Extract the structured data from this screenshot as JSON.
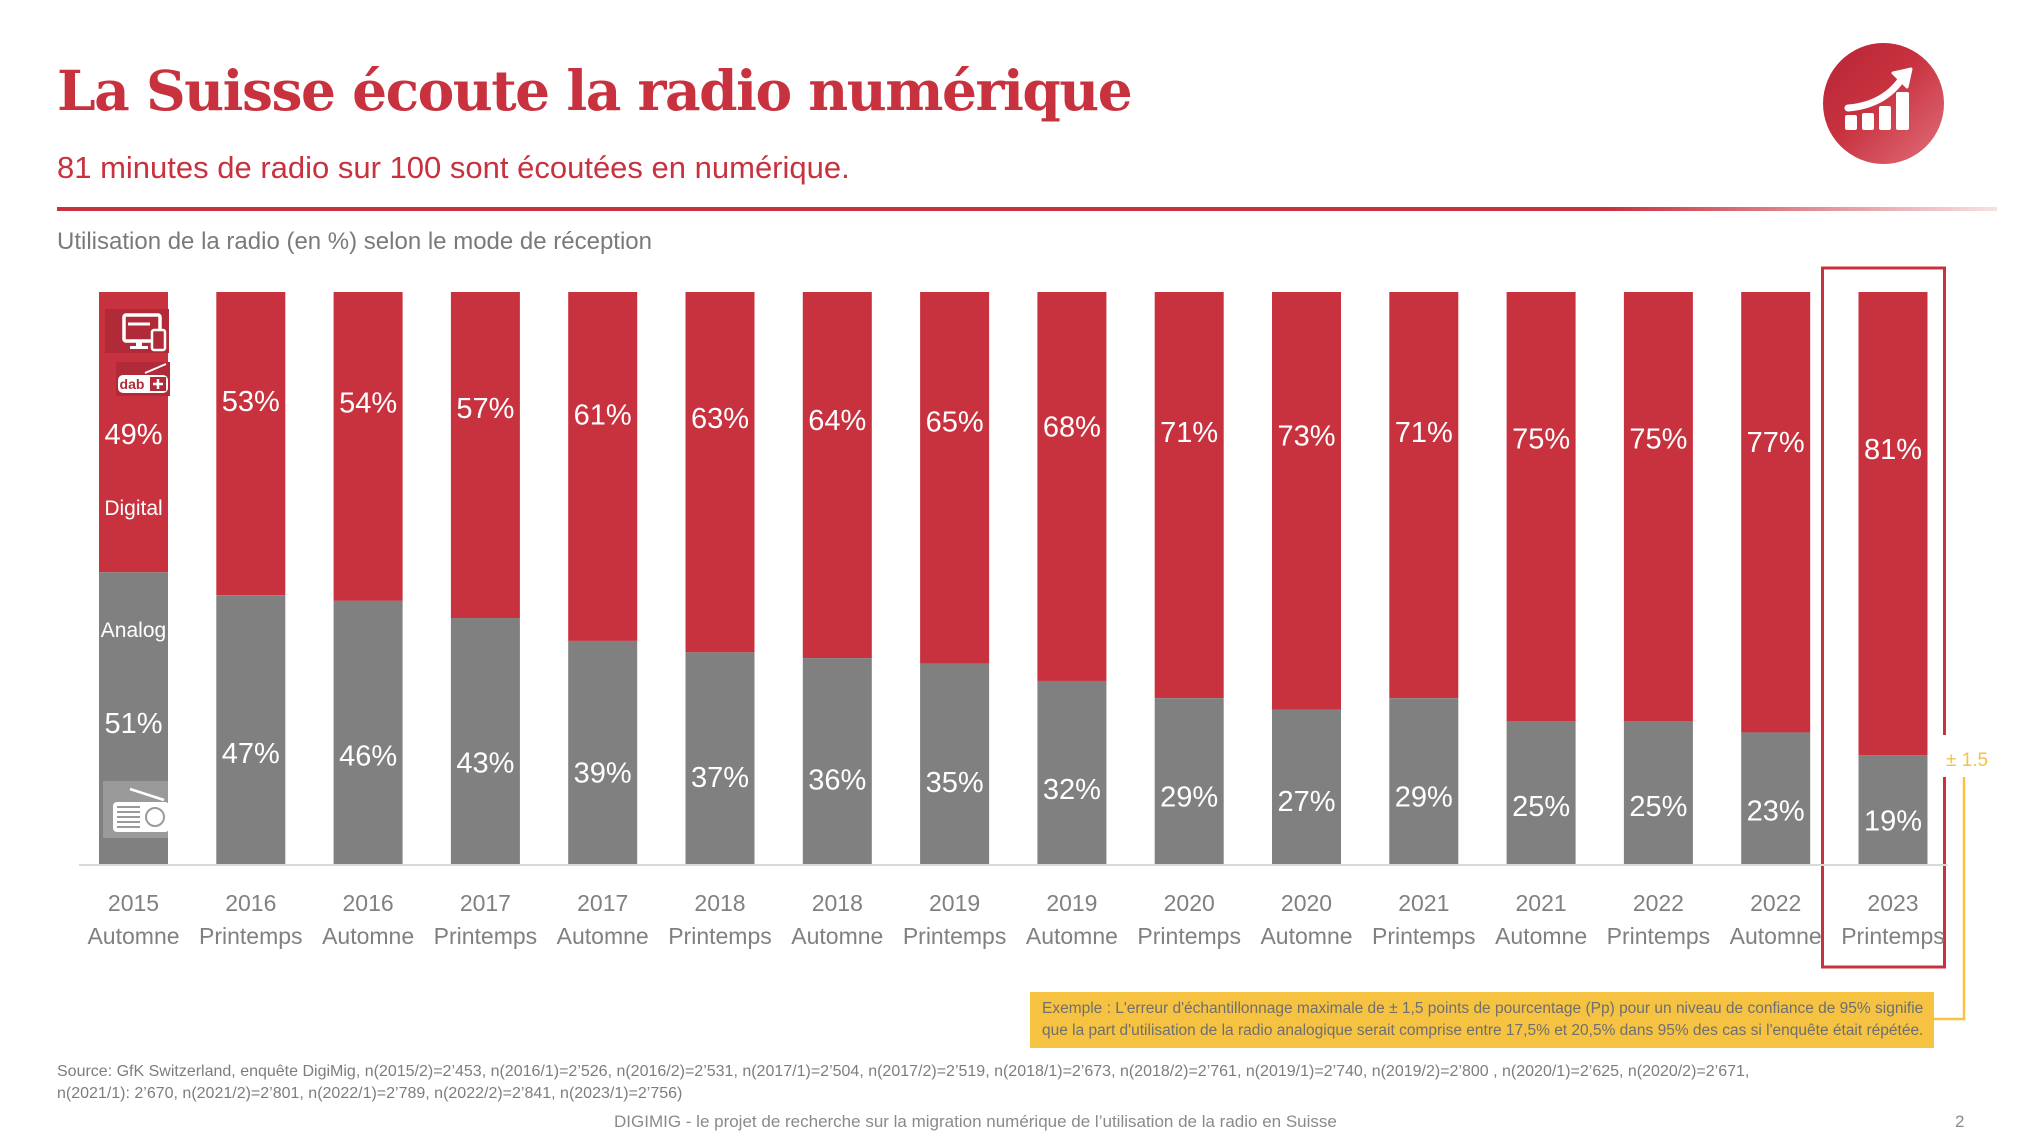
{
  "header": {
    "title": "La Suisse écoute la radio numérique",
    "subtitle": "81 minutes de radio sur 100 sont écoutées en numérique.",
    "logo_icon": "growth-chart-icon"
  },
  "colors": {
    "digital": "#c8323f",
    "analog": "#808080",
    "highlight": "#c8323f",
    "annotation": "#f5c242",
    "axis_text": "#7a7a7a"
  },
  "chart_data": {
    "type": "bar",
    "stacked": true,
    "title": "Utilisation de la radio (en %) selon le mode de réception",
    "xlabel": "",
    "ylabel": "",
    "ylim": [
      0,
      100
    ],
    "grid": false,
    "categories": [
      [
        "2015",
        "Automne"
      ],
      [
        "2016",
        "Printemps"
      ],
      [
        "2016",
        "Automne"
      ],
      [
        "2017",
        "Printemps"
      ],
      [
        "2017",
        "Automne"
      ],
      [
        "2018",
        "Printemps"
      ],
      [
        "2018",
        "Automne"
      ],
      [
        "2019",
        "Printemps"
      ],
      [
        "2019",
        "Automne"
      ],
      [
        "2020",
        "Printemps"
      ],
      [
        "2020",
        "Automne"
      ],
      [
        "2021",
        "Printemps"
      ],
      [
        "2021",
        "Automne"
      ],
      [
        "2022",
        "Printemps"
      ],
      [
        "2022",
        "Automne"
      ],
      [
        "2023",
        "Printemps"
      ]
    ],
    "series": [
      {
        "name": "Analog",
        "color": "#808080",
        "values": [
          51,
          47,
          46,
          43,
          39,
          37,
          36,
          35,
          32,
          29,
          27,
          29,
          25,
          25,
          23,
          19
        ]
      },
      {
        "name": "Digital",
        "color": "#c8323f",
        "values": [
          49,
          53,
          54,
          57,
          61,
          63,
          64,
          65,
          68,
          71,
          73,
          71,
          75,
          75,
          77,
          81
        ]
      }
    ],
    "value_suffix": "%",
    "legend": {
      "placement": "inside-first-bar",
      "digital_label": "Digital",
      "analog_label": "Analog",
      "digital_icons": [
        "computer-mobile-icon",
        "dab-plus-radio-icon"
      ],
      "analog_icon": "analog-radio-icon"
    },
    "highlight": {
      "category_index": 15,
      "error_margin_label": "± 1.5"
    }
  },
  "annotation": {
    "line1": "Exemple : L'erreur d'échantillonnage maximale de ± 1,5 points de pourcentage (Pp) pour un niveau de confiance de 95% signifie",
    "line2": "que la part d'utilisation de la radio analogique serait comprise entre 17,5% et 20,5% dans 95% des cas si l'enquête était répétée."
  },
  "source": {
    "line1": "Source: GfK Switzerland, enquête DigiMig, n(2015/2)=2’453, n(2016/1)=2’526, n(2016/2)=2’531, n(2017/1)=2’504, n(2017/2)=2’519, n(2018/1)=2’673, n(2018/2)=2’761, n(2019/1)=2’740, n(2019/2)=2’800 , n(2020/1)=2’625, n(2020/2)=2’671,",
    "line2": "n(2021/1): 2’670, n(2021/2)=2’801, n(2022/1)=2’789, n(2022/2)=2’841, n(2023/1)=2’756)"
  },
  "footer": {
    "text": "DIGIMIG - le projet de recherche sur la migration numérique de l’utilisation de la radio en Suisse",
    "page_number": "2"
  }
}
